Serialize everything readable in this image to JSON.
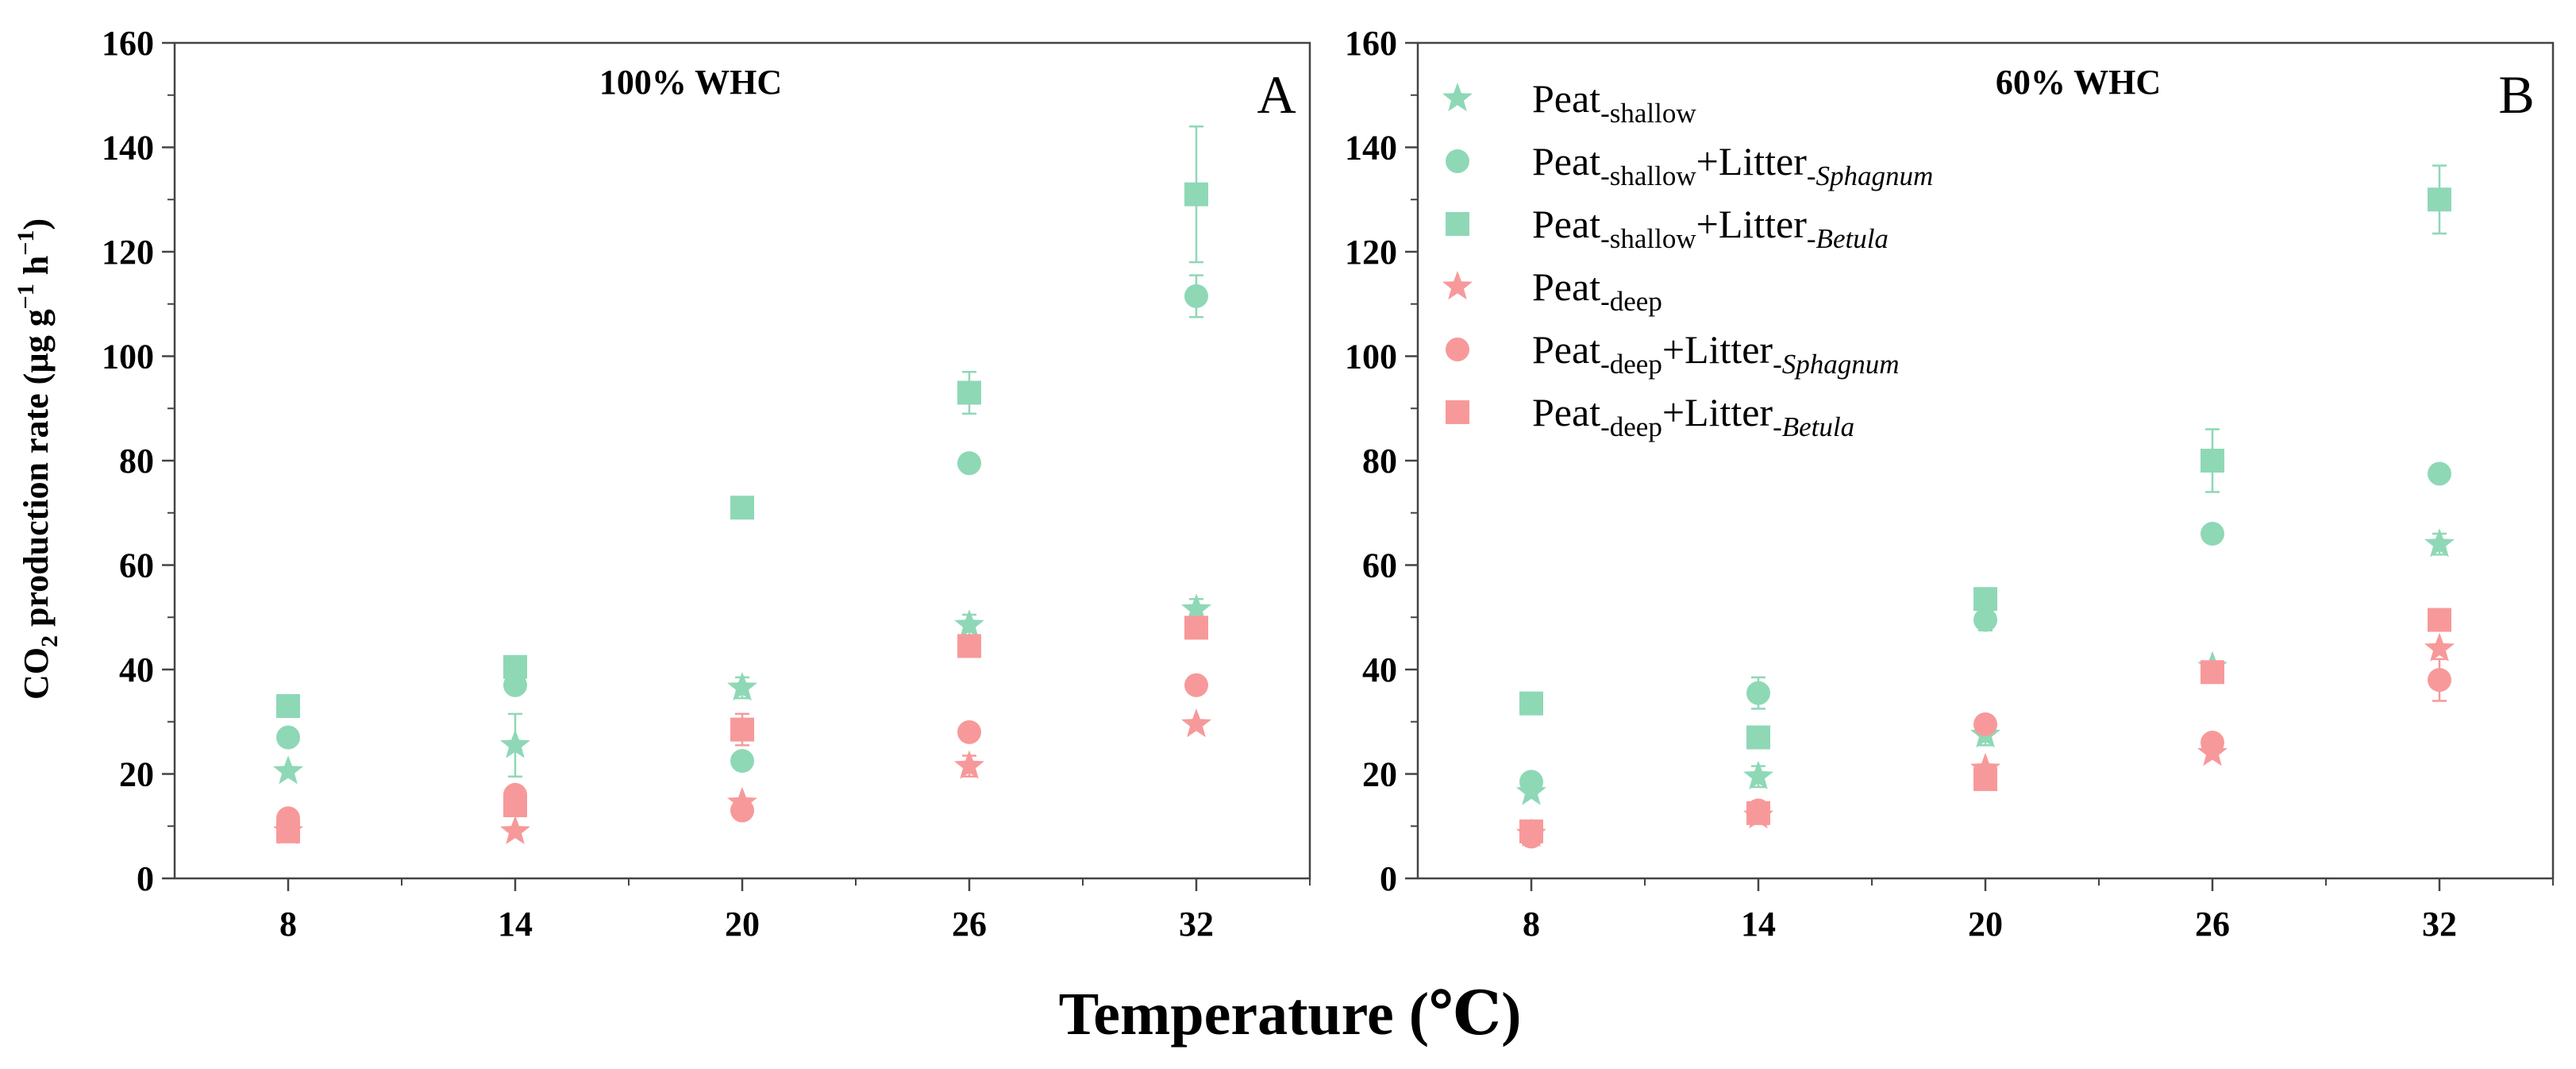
{
  "figure": {
    "y_axis_title_main": "CO",
    "y_axis_title_sub": "2",
    "y_axis_title_rest": " production rate (µg g",
    "y_axis_exp1": "−1",
    "y_axis_mid": " h",
    "y_axis_exp2": "−1",
    "y_axis_close": ")",
    "x_axis_title": "Temperature (℃)"
  },
  "legend": [
    {
      "main": "Peat",
      "sub1": "-shallow",
      "mid": "",
      "sub2": "",
      "sub2_italic": false
    },
    {
      "main": "Peat",
      "sub1": "-shallow",
      "mid": "+Litter",
      "sub2": "-Sphagnum",
      "sub2_italic": true
    },
    {
      "main": "Peat",
      "sub1": "-shallow",
      "mid": "+Litter",
      "sub2": "-Betula",
      "sub2_italic": true
    },
    {
      "main": "Peat",
      "sub1": "-deep",
      "mid": "",
      "sub2": "",
      "sub2_italic": false
    },
    {
      "main": "Peat",
      "sub1": "-deep",
      "mid": "+Litter",
      "sub2": "-Sphagnum",
      "sub2_italic": true
    },
    {
      "main": "Peat",
      "sub1": "-deep",
      "mid": "+Litter",
      "sub2": "-Betula",
      "sub2_italic": true
    }
  ],
  "chart_data": [
    {
      "type": "scatter",
      "panel": "A",
      "title": "100% WHC",
      "xlabel": "Temperature (℃)",
      "ylabel": "CO2 production rate (µg g−1 h−1)",
      "x_categories": [
        "8",
        "14",
        "20",
        "26",
        "32"
      ],
      "x": [
        8,
        14,
        20,
        26,
        32
      ],
      "xlim": [
        5,
        35
      ],
      "ylim": [
        0,
        160
      ],
      "y_ticks": [
        0,
        20,
        40,
        60,
        80,
        100,
        120,
        140,
        160
      ],
      "series": [
        {
          "name": "Peat-shallow",
          "marker": "star",
          "color": "#8ed8b6",
          "values": [
            20.5,
            25.5,
            36.5,
            48.5,
            51.5
          ],
          "errors": [
            0,
            6,
            2,
            2,
            2
          ]
        },
        {
          "name": "Peat-shallow+Litter-Sphagnum",
          "marker": "circle",
          "color": "#8ed8b6",
          "values": [
            27,
            37,
            22.5,
            79.5,
            111.5
          ],
          "errors": [
            0,
            0,
            1,
            0,
            4
          ]
        },
        {
          "name": "Peat-shallow+Litter-Betula",
          "marker": "square",
          "color": "#8ed8b6",
          "values": [
            33,
            40.5,
            71,
            93,
            131
          ],
          "errors": [
            0,
            2,
            0,
            4,
            13
          ]
        },
        {
          "name": "Peat-deep",
          "marker": "star",
          "color": "#f7999a",
          "values": [
            9,
            9,
            14.5,
            21.5,
            29.5
          ],
          "errors": [
            0,
            0,
            0,
            2,
            0
          ]
        },
        {
          "name": "Peat-deep+Litter-Sphagnum",
          "marker": "circle",
          "color": "#f7999a",
          "values": [
            11.5,
            16,
            13,
            28,
            37
          ],
          "errors": [
            0,
            0,
            0,
            0,
            0
          ]
        },
        {
          "name": "Peat-deep+Litter-Betula",
          "marker": "square",
          "color": "#f7999a",
          "values": [
            9,
            14,
            28.5,
            44.5,
            48
          ],
          "errors": [
            0,
            0,
            3,
            2,
            2
          ]
        }
      ]
    },
    {
      "type": "scatter",
      "panel": "B",
      "title": "60% WHC",
      "xlabel": "Temperature (℃)",
      "ylabel": "CO2 production rate (µg g−1 h−1)",
      "x_categories": [
        "8",
        "14",
        "20",
        "26",
        "32"
      ],
      "x": [
        8,
        14,
        20,
        26,
        32
      ],
      "xlim": [
        5,
        35
      ],
      "ylim": [
        0,
        160
      ],
      "y_ticks": [
        0,
        20,
        40,
        60,
        80,
        100,
        120,
        140,
        160
      ],
      "series": [
        {
          "name": "Peat-shallow",
          "marker": "star",
          "color": "#8ed8b6",
          "values": [
            16.5,
            19.5,
            27.5,
            40.5,
            64
          ],
          "errors": [
            0,
            2,
            2,
            0,
            2
          ]
        },
        {
          "name": "Peat-shallow+Litter-Sphagnum",
          "marker": "circle",
          "color": "#8ed8b6",
          "values": [
            18.5,
            35.5,
            49.5,
            66,
            77.5
          ],
          "errors": [
            0,
            3,
            2,
            0,
            0
          ]
        },
        {
          "name": "Peat-shallow+Litter-Betula",
          "marker": "square",
          "color": "#8ed8b6",
          "values": [
            33.5,
            27,
            53.5,
            80,
            130
          ],
          "errors": [
            0,
            0,
            2,
            6,
            6.5
          ]
        },
        {
          "name": "Peat-deep",
          "marker": "star",
          "color": "#f7999a",
          "values": [
            8.5,
            12,
            21,
            24,
            44
          ],
          "errors": [
            0,
            0,
            0,
            0,
            0
          ]
        },
        {
          "name": "Peat-deep+Litter-Sphagnum",
          "marker": "circle",
          "color": "#f7999a",
          "values": [
            8,
            13,
            29.5,
            26,
            38
          ],
          "errors": [
            0,
            0,
            0,
            0,
            4
          ]
        },
        {
          "name": "Peat-deep+Litter-Betula",
          "marker": "square",
          "color": "#f7999a",
          "values": [
            9,
            12.5,
            19,
            39.5,
            49.5
          ],
          "errors": [
            0,
            0,
            0,
            2,
            2
          ]
        }
      ]
    }
  ]
}
